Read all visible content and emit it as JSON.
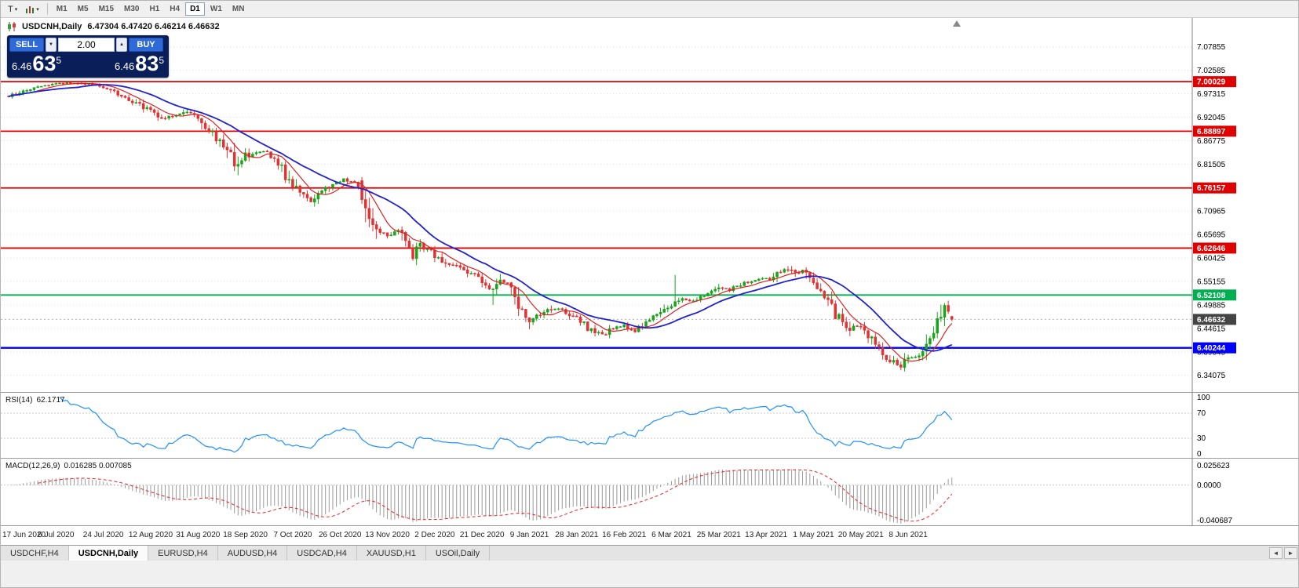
{
  "icons": {
    "dropdown": "▾",
    "caret_up": "▲",
    "caret_down": "▼",
    "scroll_left": "◄",
    "scroll_right": "►"
  },
  "toolbar": {
    "template_button_label": "T",
    "timeframes": [
      "M1",
      "M5",
      "M15",
      "M30",
      "H1",
      "H4",
      "D1",
      "W1",
      "MN"
    ],
    "active_timeframe": "D1"
  },
  "chart_header": {
    "symbol_title": "USDCNH,Daily",
    "ohlc_text": "6.47304 6.47420 6.46214 6.46632"
  },
  "trade_panel": {
    "sell_label": "SELL",
    "buy_label": "BUY",
    "volume": "2.00",
    "sell_price_prefix": "6.46",
    "sell_price_big": "63",
    "sell_price_sup": "5",
    "buy_price_prefix": "6.46",
    "buy_price_big": "83",
    "buy_price_sup": "5"
  },
  "tabs": {
    "items": [
      "USDCHF,H4",
      "USDCNH,Daily",
      "EURUSD,H4",
      "AUDUSD,H4",
      "USDCAD,H4",
      "XAUUSD,H1",
      "USOil,Daily"
    ],
    "active": "USDCNH,Daily"
  },
  "chart_data": {
    "type": "candlestick",
    "symbol": "USDCNH",
    "timeframe": "Daily",
    "current_ohlc": {
      "open": 6.47304,
      "high": 6.4742,
      "low": 6.46214,
      "close": 6.46632
    },
    "current_price": 6.46632,
    "x_labels": [
      "17 Jun 2020",
      "6 Jul 2020",
      "24 Jul 2020",
      "12 Aug 2020",
      "31 Aug 2020",
      "18 Sep 2020",
      "7 Oct 2020",
      "26 Oct 2020",
      "13 Nov 2020",
      "2 Dec 2020",
      "21 Dec 2020",
      "9 Jan 2021",
      "28 Jan 2021",
      "16 Feb 2021",
      "6 Mar 2021",
      "25 Mar 2021",
      "13 Apr 2021",
      "1 May 2021",
      "20 May 2021",
      "8 Jun 2021"
    ],
    "y_axis_labels": [
      7.07855,
      7.02585,
      6.97315,
      6.92045,
      6.86775,
      6.81505,
      6.70965,
      6.65695,
      6.60425,
      6.55155,
      6.49885,
      6.44615,
      6.39345,
      6.34075
    ],
    "grid": {
      "top": 7.07855,
      "step": 0.0527,
      "count": 15
    },
    "horizontal_levels": [
      {
        "price": 7.00029,
        "color": "#e00000"
      },
      {
        "price": 6.88897,
        "color": "#e00000"
      },
      {
        "price": 6.76157,
        "color": "#e00000"
      },
      {
        "price": 6.62646,
        "color": "#e00000"
      },
      {
        "price": 6.52108,
        "color": "#00b050"
      },
      {
        "price": 6.40244,
        "color": "#0000ff"
      }
    ],
    "candle_count": 260,
    "price_anchors": [
      [
        0,
        6.968
      ],
      [
        4,
        6.98
      ],
      [
        8,
        6.99
      ],
      [
        13,
        6.996
      ],
      [
        19,
        6.998
      ],
      [
        24,
        6.993
      ],
      [
        27,
        6.986
      ],
      [
        31,
        6.97
      ],
      [
        35,
        6.952
      ],
      [
        39,
        6.934
      ],
      [
        42,
        6.916
      ],
      [
        45,
        6.923
      ],
      [
        48,
        6.934
      ],
      [
        52,
        6.918
      ],
      [
        55,
        6.892
      ],
      [
        58,
        6.864
      ],
      [
        61,
        6.832
      ],
      [
        63,
        6.806
      ],
      [
        65,
        6.83
      ],
      [
        68,
        6.846
      ],
      [
        71,
        6.842
      ],
      [
        74,
        6.816
      ],
      [
        77,
        6.776
      ],
      [
        80,
        6.75
      ],
      [
        83,
        6.734
      ],
      [
        86,
        6.756
      ],
      [
        89,
        6.774
      ],
      [
        92,
        6.78
      ],
      [
        95,
        6.772
      ],
      [
        97,
        6.736
      ],
      [
        99,
        6.692
      ],
      [
        101,
        6.664
      ],
      [
        104,
        6.656
      ],
      [
        107,
        6.668
      ],
      [
        109,
        6.642
      ],
      [
        111,
        6.612
      ],
      [
        113,
        6.63
      ],
      [
        116,
        6.62
      ],
      [
        117,
        6.612
      ],
      [
        120,
        6.594
      ],
      [
        123,
        6.586
      ],
      [
        126,
        6.572
      ],
      [
        129,
        6.562
      ],
      [
        131,
        6.548
      ],
      [
        133,
        6.532
      ],
      [
        135,
        6.548
      ],
      [
        137,
        6.55
      ],
      [
        139,
        6.518
      ],
      [
        141,
        6.488
      ],
      [
        143,
        6.468
      ],
      [
        146,
        6.478
      ],
      [
        149,
        6.492
      ],
      [
        152,
        6.488
      ],
      [
        155,
        6.473
      ],
      [
        157,
        6.462
      ],
      [
        159,
        6.448
      ],
      [
        161,
        6.439
      ],
      [
        163,
        6.432
      ],
      [
        166,
        6.446
      ],
      [
        169,
        6.452
      ],
      [
        172,
        6.441
      ],
      [
        175,
        6.459
      ],
      [
        178,
        6.478
      ],
      [
        181,
        6.496
      ],
      [
        183,
        6.504
      ],
      [
        185,
        6.512
      ],
      [
        188,
        6.506
      ],
      [
        191,
        6.521
      ],
      [
        195,
        6.54
      ],
      [
        198,
        6.533
      ],
      [
        201,
        6.546
      ],
      [
        204,
        6.553
      ],
      [
        207,
        6.559
      ],
      [
        209,
        6.556
      ],
      [
        211,
        6.572
      ],
      [
        214,
        6.58
      ],
      [
        216,
        6.57
      ],
      [
        218,
        6.575
      ],
      [
        221,
        6.549
      ],
      [
        223,
        6.533
      ],
      [
        225,
        6.506
      ],
      [
        227,
        6.479
      ],
      [
        229,
        6.463
      ],
      [
        231,
        6.446
      ],
      [
        233,
        6.452
      ],
      [
        235,
        6.438
      ],
      [
        237,
        6.42
      ],
      [
        239,
        6.4
      ],
      [
        241,
        6.383
      ],
      [
        243,
        6.368
      ],
      [
        245,
        6.36
      ],
      [
        247,
        6.377
      ],
      [
        249,
        6.381
      ],
      [
        251,
        6.396
      ],
      [
        253,
        6.424
      ],
      [
        255,
        6.456
      ],
      [
        257,
        6.489
      ],
      [
        258,
        6.474
      ],
      [
        259,
        6.46632
      ]
    ],
    "candle_overrides": [
      {
        "i": 63,
        "l": 6.79
      },
      {
        "i": 97,
        "o": 6.778,
        "c": 6.735,
        "h": 6.786,
        "l": 6.726
      },
      {
        "i": 111,
        "l": 6.598
      },
      {
        "i": 133,
        "l": 6.499
      },
      {
        "i": 183,
        "h": 6.566
      },
      {
        "i": 214,
        "h": 6.586
      },
      {
        "i": 245,
        "l": 6.352
      },
      {
        "i": 257,
        "h": 6.503
      },
      {
        "i": 259,
        "o": 6.47304,
        "h": 6.4742,
        "l": 6.46214,
        "c": 6.46632
      }
    ],
    "moving_averages": [
      {
        "name": "fast",
        "period": 8,
        "color": "#dd2222"
      },
      {
        "name": "slow",
        "period": 20,
        "color": "#2222cc"
      }
    ],
    "rsi": {
      "label": "RSI(14)",
      "value": "62.1717",
      "period": 14,
      "color": "#1e90ff",
      "levels": [
        70,
        30
      ],
      "axis_labels": [
        "100",
        "70",
        "30",
        "0"
      ]
    },
    "macd": {
      "label": "MACD(12,26,9)",
      "values": "0.016285 0.007085",
      "fast": 12,
      "slow": 26,
      "signal": 9,
      "histogram_color": "#9a9a9a",
      "signal_color": "#ee2222",
      "axis_labels": [
        "0.025623",
        "0.0000",
        "-0.040687"
      ]
    }
  }
}
